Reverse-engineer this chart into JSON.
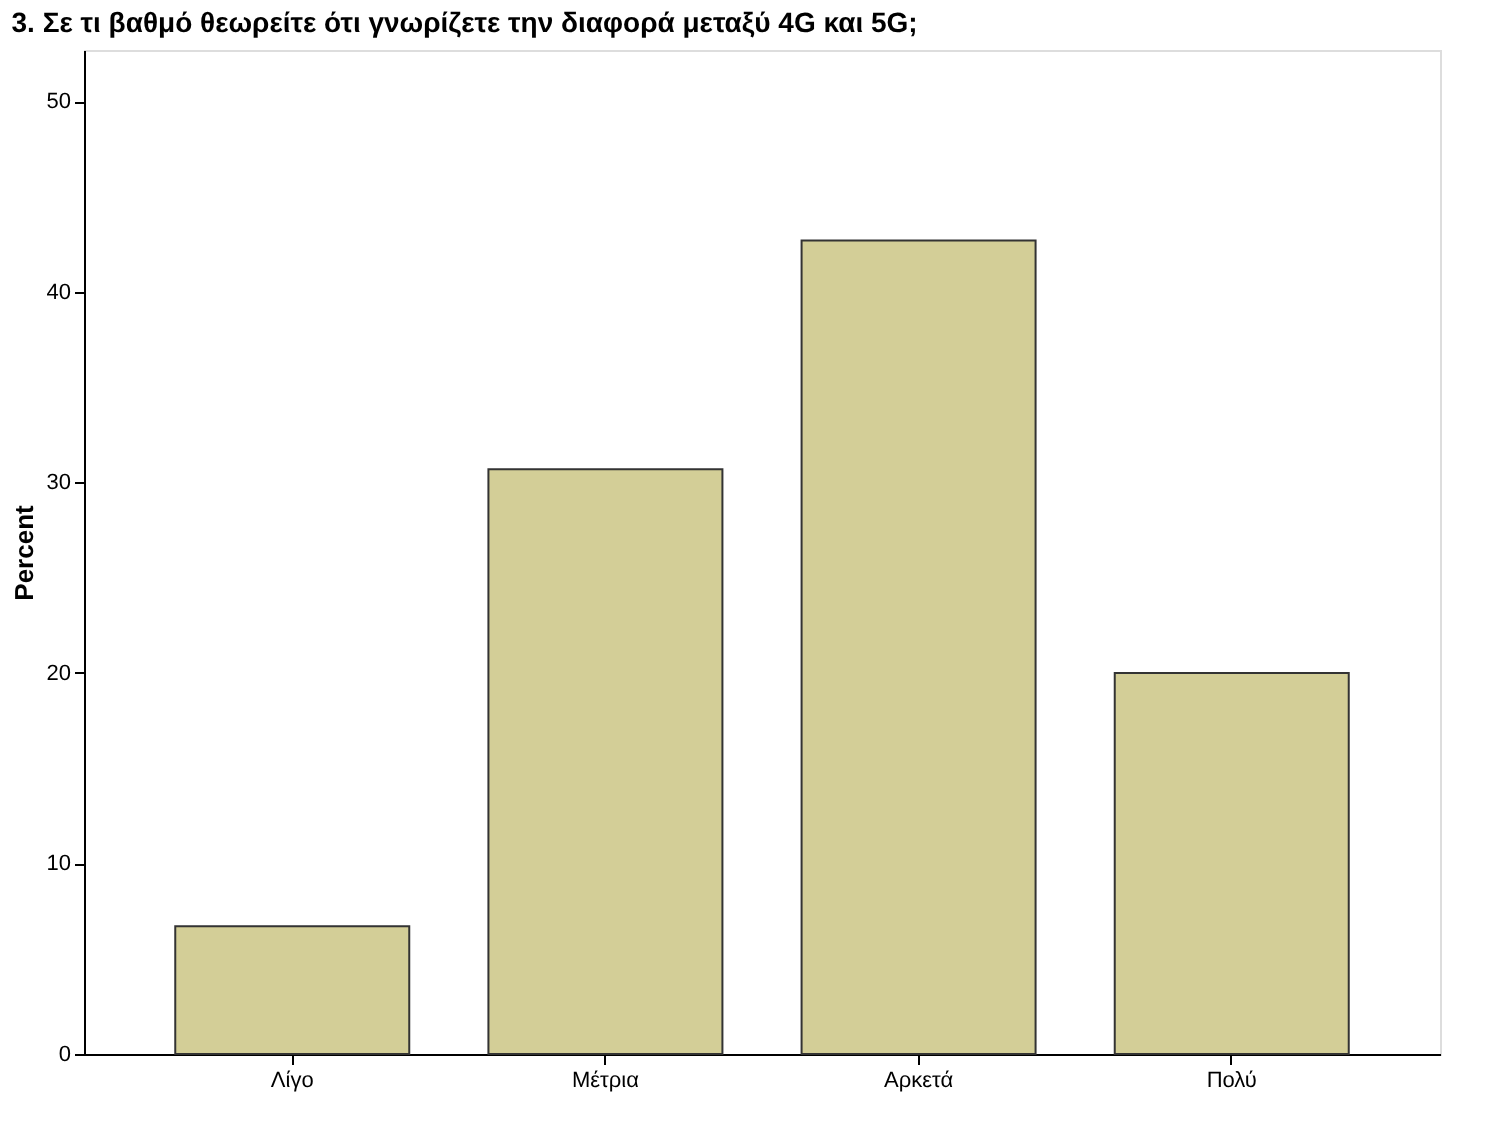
{
  "chart_data": {
    "type": "bar",
    "title": "3. Σε τι βαθμό θεωρείτε ότι γνωρίζετε την διαφορά μεταξύ 4G και 5G;",
    "ylabel": "Percent",
    "categories": [
      "Λίγο",
      "Μέτρια",
      "Αρκετά",
      "Πολύ"
    ],
    "values": [
      6.7,
      30.7,
      42.7,
      20.0
    ],
    "color": "#d3ce97",
    "ylim": [
      0,
      52.7
    ],
    "yticks": [
      0,
      10,
      20,
      30,
      40,
      50
    ],
    "grid": false
  }
}
